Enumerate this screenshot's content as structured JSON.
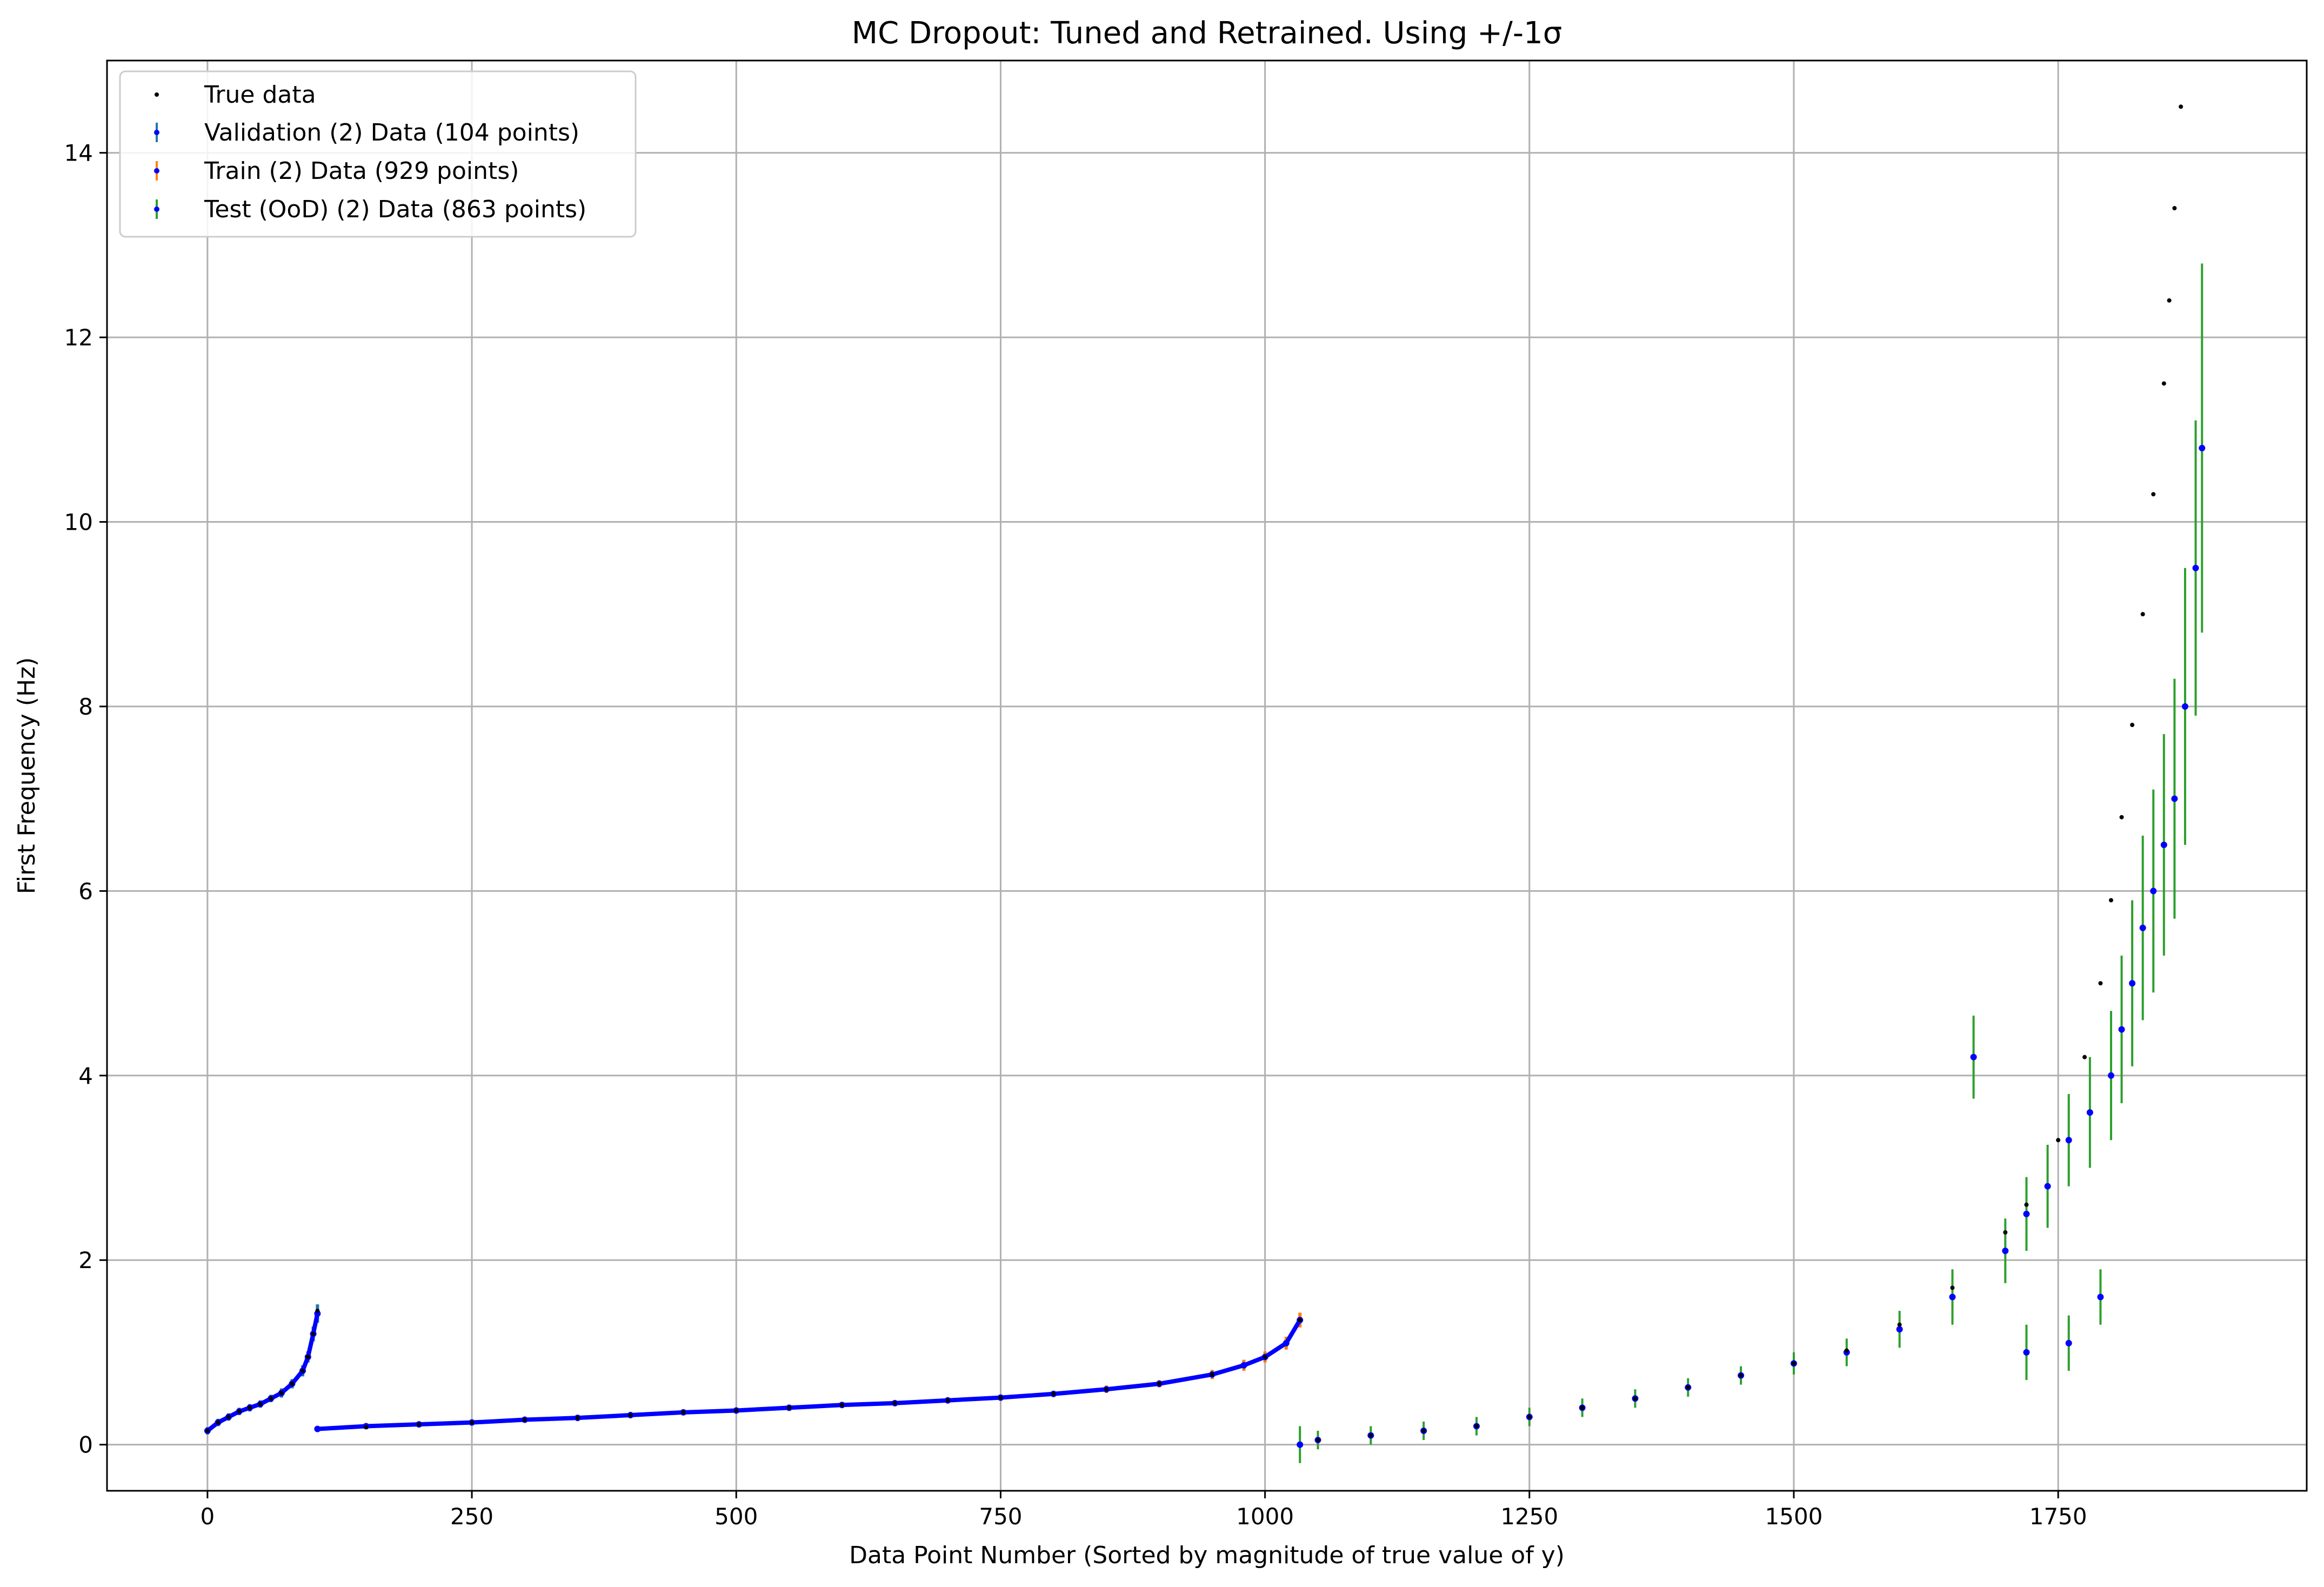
{
  "chart_data": {
    "type": "scatter",
    "title": "MC Dropout: Tuned and Retrained. Using +/-1σ",
    "xlabel": "Data Point Number (Sorted by magnitude of true value of y)",
    "ylabel": "First Frequency (Hz)",
    "xlim": [
      -95,
      1985
    ],
    "ylim": [
      -0.5,
      15.0
    ],
    "xticks": [
      0,
      250,
      500,
      750,
      1000,
      1250,
      1500,
      1750
    ],
    "yticks": [
      0,
      2,
      4,
      6,
      8,
      10,
      12,
      14
    ],
    "grid": true,
    "legend_position": "top-left",
    "colors": {
      "true": "#000000",
      "marker": "#0000ff",
      "validation_err": "#1f77b4",
      "train_err": "#ff7f0e",
      "test_err": "#2ca02c",
      "grid": "#b0b0b0"
    },
    "series": [
      {
        "name": "True data",
        "kind": "points",
        "x": [
          0,
          10,
          20,
          30,
          40,
          50,
          60,
          70,
          80,
          90,
          95,
          100,
          104,
          150,
          200,
          250,
          300,
          350,
          400,
          450,
          500,
          550,
          600,
          650,
          700,
          750,
          800,
          850,
          900,
          950,
          1000,
          1033,
          1050,
          1100,
          1150,
          1200,
          1250,
          1300,
          1350,
          1400,
          1450,
          1500,
          1550,
          1600,
          1650,
          1700,
          1720,
          1750,
          1775,
          1790,
          1800,
          1810,
          1820,
          1830,
          1840,
          1850,
          1855,
          1860,
          1866
        ],
        "y": [
          0.15,
          0.24,
          0.3,
          0.36,
          0.4,
          0.44,
          0.5,
          0.56,
          0.66,
          0.8,
          0.95,
          1.2,
          1.45,
          0.19,
          0.22,
          0.24,
          0.27,
          0.29,
          0.32,
          0.35,
          0.37,
          0.4,
          0.43,
          0.45,
          0.48,
          0.51,
          0.55,
          0.6,
          0.66,
          0.76,
          0.95,
          1.35,
          0.05,
          0.1,
          0.15,
          0.2,
          0.3,
          0.4,
          0.5,
          0.62,
          0.75,
          0.88,
          1.02,
          1.3,
          1.7,
          2.3,
          2.6,
          3.3,
          4.2,
          5.0,
          5.9,
          6.8,
          7.8,
          9.0,
          10.3,
          11.5,
          12.4,
          13.4,
          14.5
        ]
      },
      {
        "name": "Validation (2) Data (104 points)",
        "kind": "errorbar",
        "x": [
          0,
          10,
          20,
          30,
          40,
          50,
          60,
          70,
          80,
          90,
          95,
          100,
          104
        ],
        "y": [
          0.15,
          0.24,
          0.3,
          0.36,
          0.4,
          0.44,
          0.5,
          0.56,
          0.66,
          0.8,
          0.95,
          1.2,
          1.42
        ],
        "err": [
          0.04,
          0.04,
          0.04,
          0.04,
          0.04,
          0.04,
          0.04,
          0.05,
          0.05,
          0.06,
          0.06,
          0.08,
          0.1
        ]
      },
      {
        "name": "Train (2) Data (929 points)",
        "kind": "errorbar",
        "x": [
          104,
          150,
          200,
          250,
          300,
          350,
          400,
          450,
          500,
          550,
          600,
          650,
          700,
          750,
          800,
          850,
          900,
          950,
          980,
          1000,
          1020,
          1033
        ],
        "y": [
          0.17,
          0.2,
          0.22,
          0.24,
          0.27,
          0.29,
          0.32,
          0.35,
          0.37,
          0.4,
          0.43,
          0.45,
          0.48,
          0.51,
          0.55,
          0.6,
          0.66,
          0.76,
          0.86,
          0.95,
          1.1,
          1.35
        ],
        "err": [
          0.03,
          0.03,
          0.03,
          0.03,
          0.03,
          0.03,
          0.03,
          0.03,
          0.03,
          0.03,
          0.03,
          0.03,
          0.03,
          0.03,
          0.03,
          0.04,
          0.04,
          0.05,
          0.06,
          0.06,
          0.07,
          0.08
        ]
      },
      {
        "name": "Test (OoD) (2) Data (863 points)",
        "kind": "errorbar",
        "x": [
          1033,
          1050,
          1100,
          1150,
          1200,
          1250,
          1300,
          1350,
          1400,
          1450,
          1500,
          1550,
          1600,
          1650,
          1670,
          1700,
          1720,
          1740,
          1760,
          1780,
          1800,
          1810,
          1820,
          1830,
          1840,
          1850,
          1860,
          1870,
          1880,
          1886,
          1720,
          1760,
          1790
        ],
        "y": [
          0.0,
          0.05,
          0.1,
          0.15,
          0.2,
          0.3,
          0.4,
          0.5,
          0.62,
          0.75,
          0.88,
          1.0,
          1.25,
          1.6,
          4.2,
          2.1,
          2.5,
          2.8,
          3.3,
          3.6,
          4.0,
          4.5,
          5.0,
          5.6,
          6.0,
          6.5,
          7.0,
          8.0,
          9.5,
          10.8,
          1.0,
          1.1,
          1.6
        ],
        "err": [
          0.2,
          0.1,
          0.1,
          0.1,
          0.1,
          0.1,
          0.1,
          0.1,
          0.1,
          0.1,
          0.12,
          0.15,
          0.2,
          0.3,
          0.45,
          0.35,
          0.4,
          0.45,
          0.5,
          0.6,
          0.7,
          0.8,
          0.9,
          1.0,
          1.1,
          1.2,
          1.3,
          1.5,
          1.6,
          2.0,
          0.3,
          0.3,
          0.3
        ]
      }
    ]
  }
}
